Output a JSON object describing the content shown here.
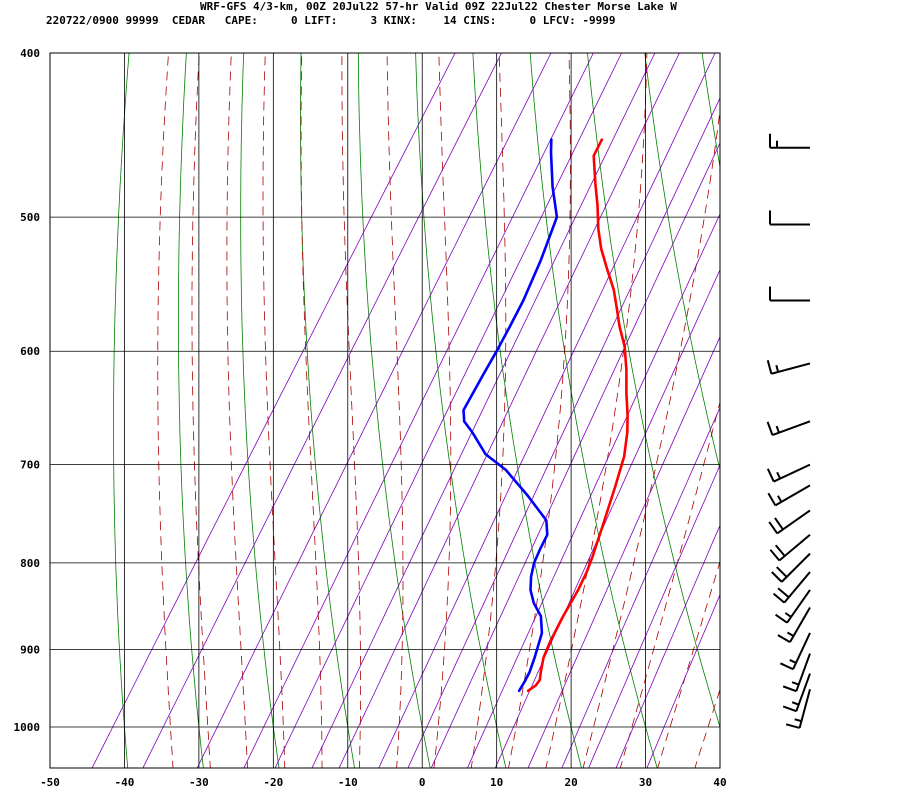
{
  "header": {
    "line1": "WRF-GFS 4/3-km, 00Z 20Jul22 57-hr Valid 09Z 22Jul22 Chester Morse Lake W",
    "line2": "220722/0900 99999  CEDAR   CAPE:     0 LIFT:     3 KINX:    14 CINS:     0 LFCV: -9999"
  },
  "colors": {
    "temperature": "#ff0000",
    "dewpoint": "#0000ff",
    "dry_adiabat": "#008000",
    "moist_adiabat": "#aa0000",
    "mixing_ratio": "#8000c0",
    "grid": "#000000"
  },
  "chart_data": {
    "type": "line",
    "title": "",
    "xlabel": "",
    "ylabel": "",
    "x_ticks": [
      "-50",
      "-40",
      "-30",
      "-20",
      "-10",
      "0",
      "10",
      "20",
      "30",
      "40"
    ],
    "x_tick_values": [
      -50,
      -40,
      -30,
      -20,
      -10,
      0,
      10,
      20,
      30,
      40
    ],
    "y_ticks": [
      "400",
      "500",
      "600",
      "700",
      "800",
      "900",
      "1000"
    ],
    "y_tick_values": [
      400,
      500,
      600,
      700,
      800,
      900,
      1000
    ],
    "xlim": [
      -50,
      40
    ],
    "ylim": [
      1040,
      400
    ],
    "y_scale": "log",
    "grid": true,
    "series": [
      {
        "key": "temperature",
        "points": [
          [
            11.3,
            952
          ],
          [
            11.9,
            945
          ],
          [
            12.0,
            938
          ],
          [
            11.5,
            928
          ],
          [
            10.7,
            910
          ],
          [
            10.3,
            890
          ],
          [
            10.0,
            860
          ],
          [
            9.9,
            830
          ],
          [
            9.6,
            810
          ],
          [
            9.2,
            795
          ],
          [
            8.0,
            760
          ],
          [
            6.5,
            720
          ],
          [
            5.3,
            692
          ],
          [
            3.8,
            670
          ],
          [
            2.5,
            655
          ],
          [
            0.5,
            635
          ],
          [
            -1.4,
            615
          ],
          [
            -3.5,
            596
          ],
          [
            -5.8,
            580
          ],
          [
            -7.6,
            566
          ],
          [
            -9.5,
            552
          ],
          [
            -12.0,
            537
          ],
          [
            -14.5,
            522
          ],
          [
            -16.5,
            508
          ],
          [
            -18.5,
            492
          ],
          [
            -20.5,
            478
          ],
          [
            -23.0,
            460
          ],
          [
            -23.2,
            450
          ]
        ]
      },
      {
        "key": "dewpoint",
        "points": [
          [
            10.1,
            952
          ],
          [
            10.1,
            940
          ],
          [
            10.0,
            928
          ],
          [
            9.5,
            910
          ],
          [
            8.5,
            880
          ],
          [
            7.0,
            860
          ],
          [
            5.0,
            845
          ],
          [
            3.5,
            830
          ],
          [
            2.5,
            815
          ],
          [
            1.8,
            800
          ],
          [
            1.5,
            785
          ],
          [
            1.3,
            770
          ],
          [
            0.0,
            755
          ],
          [
            -4.5,
            730
          ],
          [
            -9.5,
            705
          ],
          [
            -13.5,
            690
          ],
          [
            -17.0,
            670
          ],
          [
            -19.0,
            660
          ],
          [
            -20.0,
            650
          ],
          [
            -20.2,
            620
          ],
          [
            -20.3,
            600
          ],
          [
            -20.5,
            580
          ],
          [
            -20.8,
            560
          ],
          [
            -21.7,
            530
          ],
          [
            -23.0,
            500
          ],
          [
            -26.0,
            480
          ],
          [
            -29.0,
            458
          ],
          [
            -30.0,
            450
          ]
        ]
      }
    ],
    "wind_barbs": [
      {
        "p": 455,
        "speed_kt": 15,
        "dir_deg": 270
      },
      {
        "p": 505,
        "speed_kt": 10,
        "dir_deg": 270
      },
      {
        "p": 560,
        "speed_kt": 10,
        "dir_deg": 270
      },
      {
        "p": 610,
        "speed_kt": 15,
        "dir_deg": 255
      },
      {
        "p": 660,
        "speed_kt": 15,
        "dir_deg": 250
      },
      {
        "p": 700,
        "speed_kt": 15,
        "dir_deg": 245
      },
      {
        "p": 720,
        "speed_kt": 15,
        "dir_deg": 240
      },
      {
        "p": 745,
        "speed_kt": 20,
        "dir_deg": 235
      },
      {
        "p": 770,
        "speed_kt": 20,
        "dir_deg": 230
      },
      {
        "p": 790,
        "speed_kt": 20,
        "dir_deg": 225
      },
      {
        "p": 810,
        "speed_kt": 20,
        "dir_deg": 220
      },
      {
        "p": 830,
        "speed_kt": 15,
        "dir_deg": 215
      },
      {
        "p": 850,
        "speed_kt": 15,
        "dir_deg": 210
      },
      {
        "p": 880,
        "speed_kt": 15,
        "dir_deg": 205
      },
      {
        "p": 905,
        "speed_kt": 15,
        "dir_deg": 200
      },
      {
        "p": 930,
        "speed_kt": 15,
        "dir_deg": 200
      },
      {
        "p": 950,
        "speed_kt": 15,
        "dir_deg": 195
      }
    ]
  }
}
